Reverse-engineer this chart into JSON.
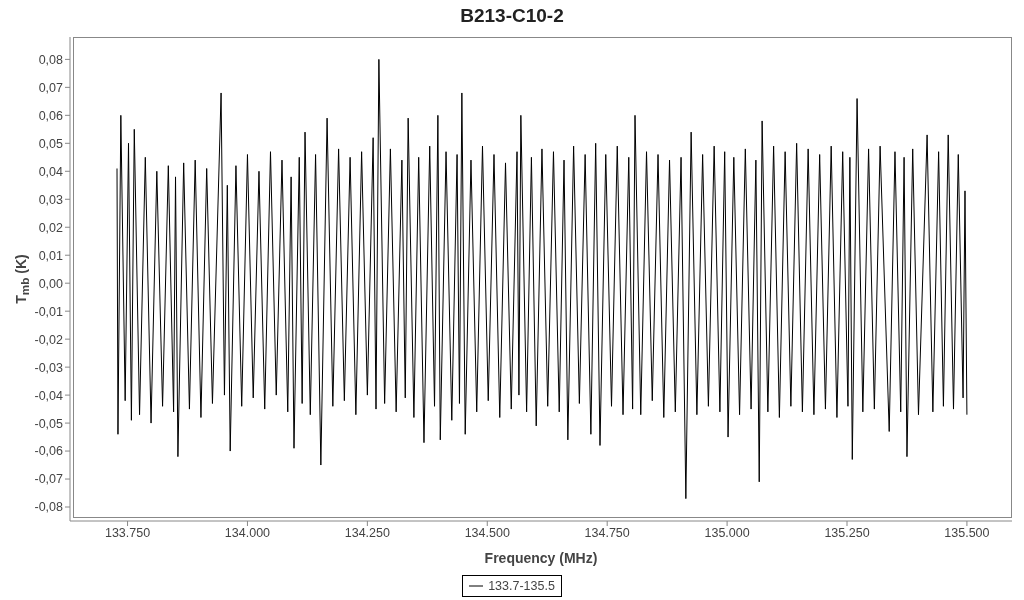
{
  "chart_data": {
    "type": "line",
    "title": "B213-C10-2",
    "xlabel": "Frequency (MHz)",
    "ylabel": "T$_{mb}$ (K)",
    "x": [
      133728,
      133730,
      133736,
      133745,
      133752,
      133758,
      133764,
      133775,
      133787,
      133799,
      133811,
      133823,
      133835,
      133846,
      133850,
      133855,
      133867,
      133879,
      133891,
      133903,
      133915,
      133927,
      133945,
      133952,
      133958,
      133964,
      133976,
      133988,
      134000,
      134012,
      134024,
      134036,
      134048,
      134060,
      134072,
      134084,
      134091,
      134097,
      134108,
      134114,
      134120,
      134131,
      134142,
      134153,
      134166,
      134178,
      134190,
      134202,
      134214,
      134226,
      134238,
      134250,
      134262,
      134268,
      134274,
      134286,
      134298,
      134310,
      134322,
      134329,
      134335,
      134347,
      134357,
      134368,
      134380,
      134390,
      134397,
      134402,
      134414,
      134426,
      134437,
      134442,
      134447,
      134454,
      134466,
      134478,
      134490,
      134502,
      134514,
      134526,
      134538,
      134550,
      134562,
      134566,
      134570,
      134582,
      134592,
      134602,
      134614,
      134626,
      134638,
      134650,
      134660,
      134668,
      134680,
      134692,
      134704,
      134716,
      134726,
      134735,
      134747,
      134759,
      134771,
      134783,
      134795,
      134803,
      134808,
      134820,
      134832,
      134844,
      134856,
      134868,
      134880,
      134892,
      134904,
      134914,
      134925,
      134937,
      134949,
      134961,
      134973,
      134985,
      134995,
      135002,
      135014,
      135026,
      135038,
      135050,
      135060,
      135067,
      135073,
      135085,
      135097,
      135109,
      135121,
      135133,
      135145,
      135157,
      135169,
      135181,
      135193,
      135205,
      135217,
      135229,
      135241,
      135252,
      135256,
      135261,
      135271,
      135283,
      135295,
      135307,
      135319,
      135338,
      135350,
      135362,
      135369,
      135375,
      135387,
      135399,
      135417,
      135429,
      135441,
      135451,
      135461,
      135472,
      135482,
      135492,
      135496,
      135500
    ],
    "series": [
      {
        "name": "133.7-135.5",
        "color": "#000000",
        "values": [
          0.041,
          -0.054,
          0.06,
          -0.042,
          0.05,
          -0.049,
          0.055,
          -0.047,
          0.045,
          -0.05,
          0.04,
          -0.044,
          0.042,
          -0.046,
          0.038,
          -0.062,
          0.043,
          -0.045,
          0.044,
          -0.048,
          0.041,
          -0.043,
          0.068,
          -0.04,
          0.035,
          -0.06,
          0.042,
          -0.044,
          0.046,
          -0.041,
          0.04,
          -0.045,
          0.047,
          -0.04,
          0.044,
          -0.046,
          0.038,
          -0.059,
          0.045,
          -0.043,
          0.054,
          -0.047,
          0.046,
          -0.065,
          0.059,
          -0.044,
          0.048,
          -0.042,
          0.045,
          -0.047,
          0.047,
          -0.04,
          0.052,
          -0.045,
          0.08,
          -0.043,
          0.048,
          -0.046,
          0.044,
          -0.041,
          0.059,
          -0.048,
          0.045,
          -0.057,
          0.049,
          -0.044,
          0.06,
          -0.056,
          0.047,
          -0.049,
          0.046,
          -0.043,
          0.068,
          -0.054,
          0.044,
          -0.046,
          0.049,
          -0.042,
          0.046,
          -0.048,
          0.043,
          -0.045,
          0.047,
          -0.04,
          0.06,
          -0.046,
          0.045,
          -0.051,
          0.048,
          -0.044,
          0.047,
          -0.046,
          0.044,
          -0.056,
          0.049,
          -0.043,
          0.046,
          -0.054,
          0.05,
          -0.058,
          0.046,
          -0.044,
          0.049,
          -0.047,
          0.045,
          -0.045,
          0.06,
          -0.047,
          0.047,
          -0.042,
          0.046,
          -0.048,
          0.044,
          -0.046,
          0.045,
          -0.077,
          0.054,
          -0.047,
          0.046,
          -0.044,
          0.049,
          -0.046,
          0.047,
          -0.055,
          0.045,
          -0.047,
          0.048,
          -0.045,
          0.044,
          -0.071,
          0.058,
          -0.046,
          0.049,
          -0.048,
          0.047,
          -0.044,
          0.05,
          -0.046,
          0.048,
          -0.047,
          0.046,
          -0.045,
          0.049,
          -0.048,
          0.047,
          -0.044,
          0.045,
          -0.063,
          0.066,
          -0.046,
          0.048,
          -0.045,
          0.049,
          -0.053,
          0.047,
          -0.046,
          0.045,
          -0.062,
          0.048,
          -0.047,
          0.053,
          -0.046,
          0.047,
          -0.044,
          0.053,
          -0.045,
          0.046,
          -0.041,
          0.033,
          -0.047
        ]
      }
    ],
    "xlim": [
      133630,
      135594
    ],
    "xticks": [
      {
        "value": 133750,
        "label": "133.750"
      },
      {
        "value": 134000,
        "label": "134.000"
      },
      {
        "value": 134250,
        "label": "134.250"
      },
      {
        "value": 134500,
        "label": "134.500"
      },
      {
        "value": 134750,
        "label": "134.750"
      },
      {
        "value": 135000,
        "label": "135.000"
      },
      {
        "value": 135250,
        "label": "135.250"
      },
      {
        "value": 135500,
        "label": "135.500"
      }
    ],
    "ylim": [
      -0.085,
      0.088
    ],
    "yticks": [
      {
        "value": -0.08,
        "label": "-0,08"
      },
      {
        "value": -0.07,
        "label": "-0,07"
      },
      {
        "value": -0.06,
        "label": "-0,06"
      },
      {
        "value": -0.05,
        "label": "-0,05"
      },
      {
        "value": -0.04,
        "label": "-0,04"
      },
      {
        "value": -0.03,
        "label": "-0,03"
      },
      {
        "value": -0.02,
        "label": "-0,02"
      },
      {
        "value": -0.01,
        "label": "-0,01"
      },
      {
        "value": 0,
        "label": "0,00"
      },
      {
        "value": 0.01,
        "label": "0,01"
      },
      {
        "value": 0.02,
        "label": "0,02"
      },
      {
        "value": 0.03,
        "label": "0,03"
      },
      {
        "value": 0.04,
        "label": "0,04"
      },
      {
        "value": 0.05,
        "label": "0,05"
      },
      {
        "value": 0.06,
        "label": "0,06"
      },
      {
        "value": 0.07,
        "label": "0,07"
      },
      {
        "value": 0.08,
        "label": "0,08"
      }
    ],
    "grid": false,
    "legend": "bottom",
    "marker": "none",
    "line_style": "solid"
  }
}
